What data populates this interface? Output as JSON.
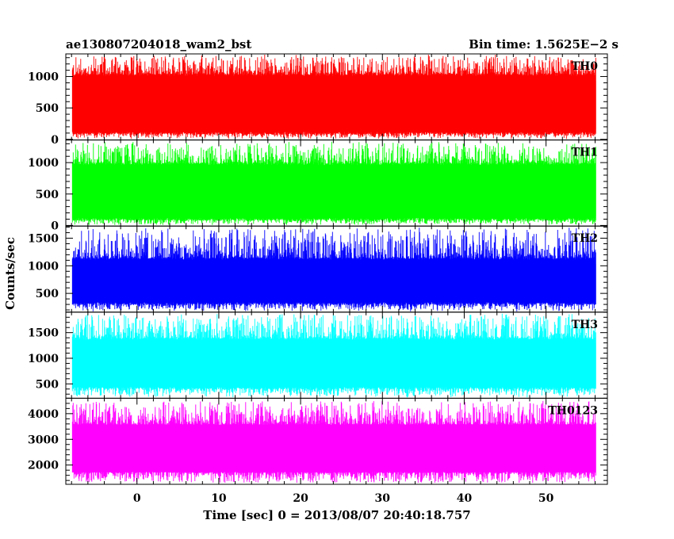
{
  "chart_data": {
    "type": "line",
    "title_left": "ae130807204018_wam2_bst",
    "title_right": "Bin time: 1.5625E−2 s",
    "ylabel": "Counts/sec",
    "xlabel": "Time [sec] 0 = 2013/08/07 20:40:18.757",
    "xlim": [
      -8.7,
      57.5
    ],
    "data_x_range": [
      -7.9,
      56.1
    ],
    "x_ticks": [
      {
        "value": 0,
        "label": "0"
      },
      {
        "value": 10,
        "label": "10"
      },
      {
        "value": 20,
        "label": "20"
      },
      {
        "value": 30,
        "label": "30"
      },
      {
        "value": 40,
        "label": "40"
      },
      {
        "value": 50,
        "label": "50"
      }
    ],
    "grid": false,
    "panels": [
      {
        "name": "TH0",
        "color": "#ff0000",
        "ylim": [
          -10,
          1360
        ],
        "band": {
          "low": 80,
          "high": 1050,
          "max": 1360,
          "min": 0
        },
        "y_ticks": [
          {
            "value": 0,
            "label": "0"
          },
          {
            "value": 500,
            "label": "500"
          },
          {
            "value": 1000,
            "label": "1000"
          }
        ]
      },
      {
        "name": "TH1",
        "color": "#00ff00",
        "ylim": [
          -10,
          1360
        ],
        "band": {
          "low": 80,
          "high": 1000,
          "max": 1340,
          "min": 0
        },
        "y_ticks": [
          {
            "value": 0,
            "label": "0"
          },
          {
            "value": 500,
            "label": "500"
          },
          {
            "value": 1000,
            "label": "1000"
          }
        ]
      },
      {
        "name": "TH2",
        "color": "#0000ff",
        "ylim": [
          160,
          1720
        ],
        "band": {
          "low": 300,
          "high": 1150,
          "max": 1700,
          "min": 170
        },
        "y_ticks": [
          {
            "value": 500,
            "label": "500"
          },
          {
            "value": 1000,
            "label": "1000"
          },
          {
            "value": 1500,
            "label": "1500"
          }
        ]
      },
      {
        "name": "TH3",
        "color": "#00ffff",
        "ylim": [
          220,
          1900
        ],
        "band": {
          "low": 400,
          "high": 1400,
          "max": 1880,
          "min": 230
        },
        "y_ticks": [
          {
            "value": 500,
            "label": "500"
          },
          {
            "value": 1000,
            "label": "1000"
          },
          {
            "value": 1500,
            "label": "1500"
          }
        ]
      },
      {
        "name": "TH0123",
        "color": "#ff00ff",
        "ylim": [
          1250,
          4600
        ],
        "band": {
          "low": 1700,
          "high": 3600,
          "max": 4500,
          "min": 1300
        },
        "y_ticks": [
          {
            "value": 2000,
            "label": "2000"
          },
          {
            "value": 3000,
            "label": "3000"
          },
          {
            "value": 4000,
            "label": "4000"
          }
        ]
      }
    ]
  }
}
